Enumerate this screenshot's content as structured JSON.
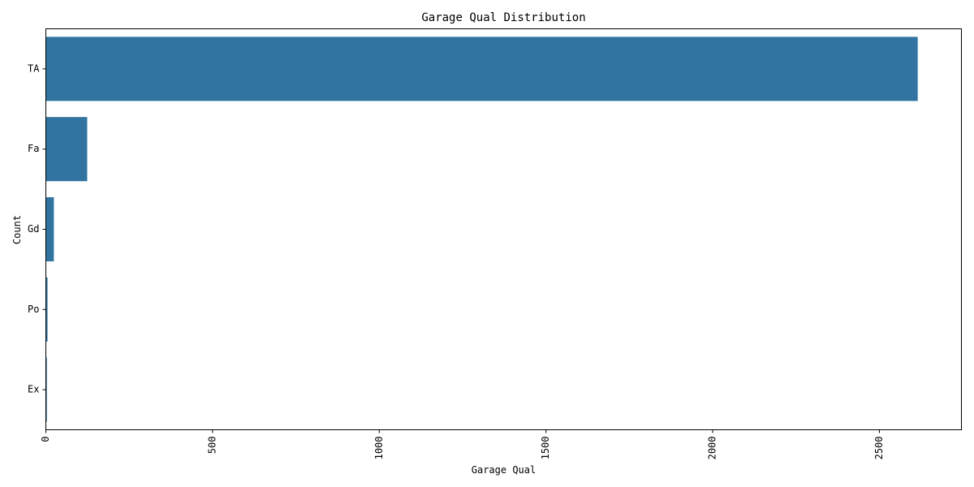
{
  "chart_data": {
    "type": "bar",
    "orientation": "horizontal",
    "title": "Garage Qual Distribution",
    "xlabel": "Garage Qual",
    "ylabel": "Count",
    "categories": [
      "TA",
      "Fa",
      "Gd",
      "Po",
      "Ex"
    ],
    "values": [
      2615,
      124,
      24,
      5,
      3
    ],
    "xlim": [
      0,
      2746
    ],
    "xticks": [
      0,
      500,
      1000,
      1500,
      2000,
      2500
    ],
    "xtick_rotation": -90,
    "grid": false,
    "legend": "none",
    "bar_color": "#3274a1"
  }
}
